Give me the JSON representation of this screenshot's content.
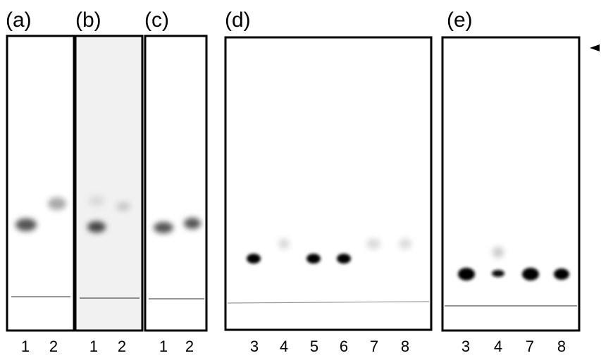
{
  "panels": [
    {
      "label": "(a)",
      "lanes": [
        "1",
        "2"
      ]
    },
    {
      "label": "(b)",
      "lanes": [
        "1",
        "2"
      ]
    },
    {
      "label": "(c)",
      "lanes": [
        "1",
        "2"
      ]
    },
    {
      "label": "(d)",
      "lanes": [
        "3",
        "4",
        "5",
        "6",
        "7",
        "8"
      ]
    },
    {
      "label": "(e)",
      "lanes": [
        "3",
        "4",
        "7",
        "8"
      ]
    }
  ]
}
